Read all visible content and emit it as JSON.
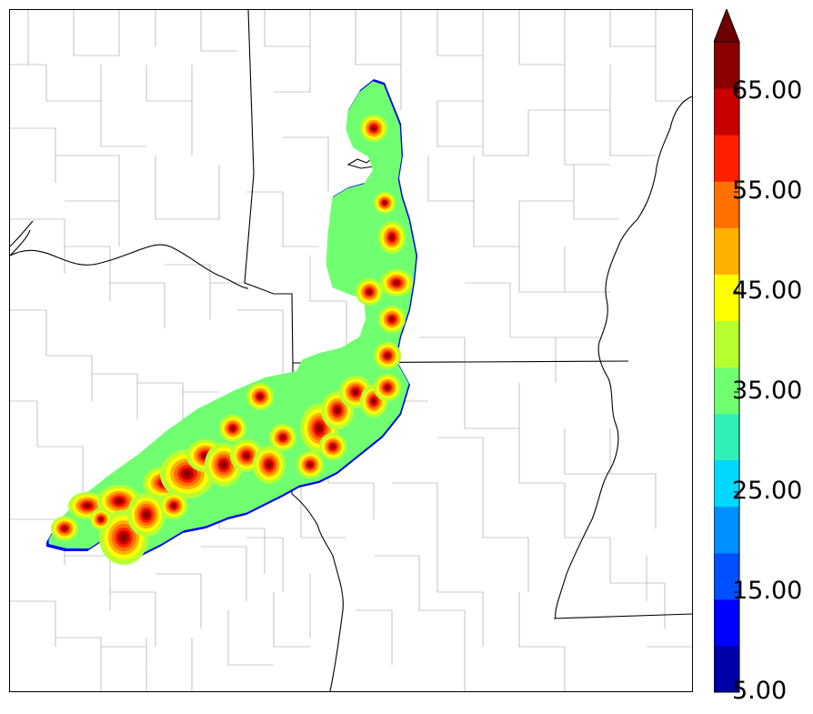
{
  "map": {
    "field_colors": [
      "#0000a8",
      "#0000ff",
      "#0050ff",
      "#0090ff",
      "#00d8ff",
      "#30f0b8",
      "#70ff70",
      "#b8ff30",
      "#ffff00",
      "#ffb000",
      "#ff7000",
      "#ff2000",
      "#c80000",
      "#8c0000"
    ]
  },
  "colorbar": {
    "min": 5.0,
    "max": 70.0,
    "step": 5.0,
    "extend": "max",
    "tick_labels": [
      "65.00",
      "55.00",
      "45.00",
      "35.00",
      "25.00",
      "15.00",
      "5.00"
    ],
    "tick_values": [
      65,
      55,
      45,
      35,
      25,
      15,
      5
    ],
    "colors": [
      "#0000a8",
      "#0000ff",
      "#0050ff",
      "#0090ff",
      "#00d8ff",
      "#30f0b8",
      "#70ff70",
      "#b8ff30",
      "#ffff00",
      "#ffb000",
      "#ff7000",
      "#ff2000",
      "#c80000",
      "#8c0000"
    ],
    "extend_color": "#6e0000"
  }
}
